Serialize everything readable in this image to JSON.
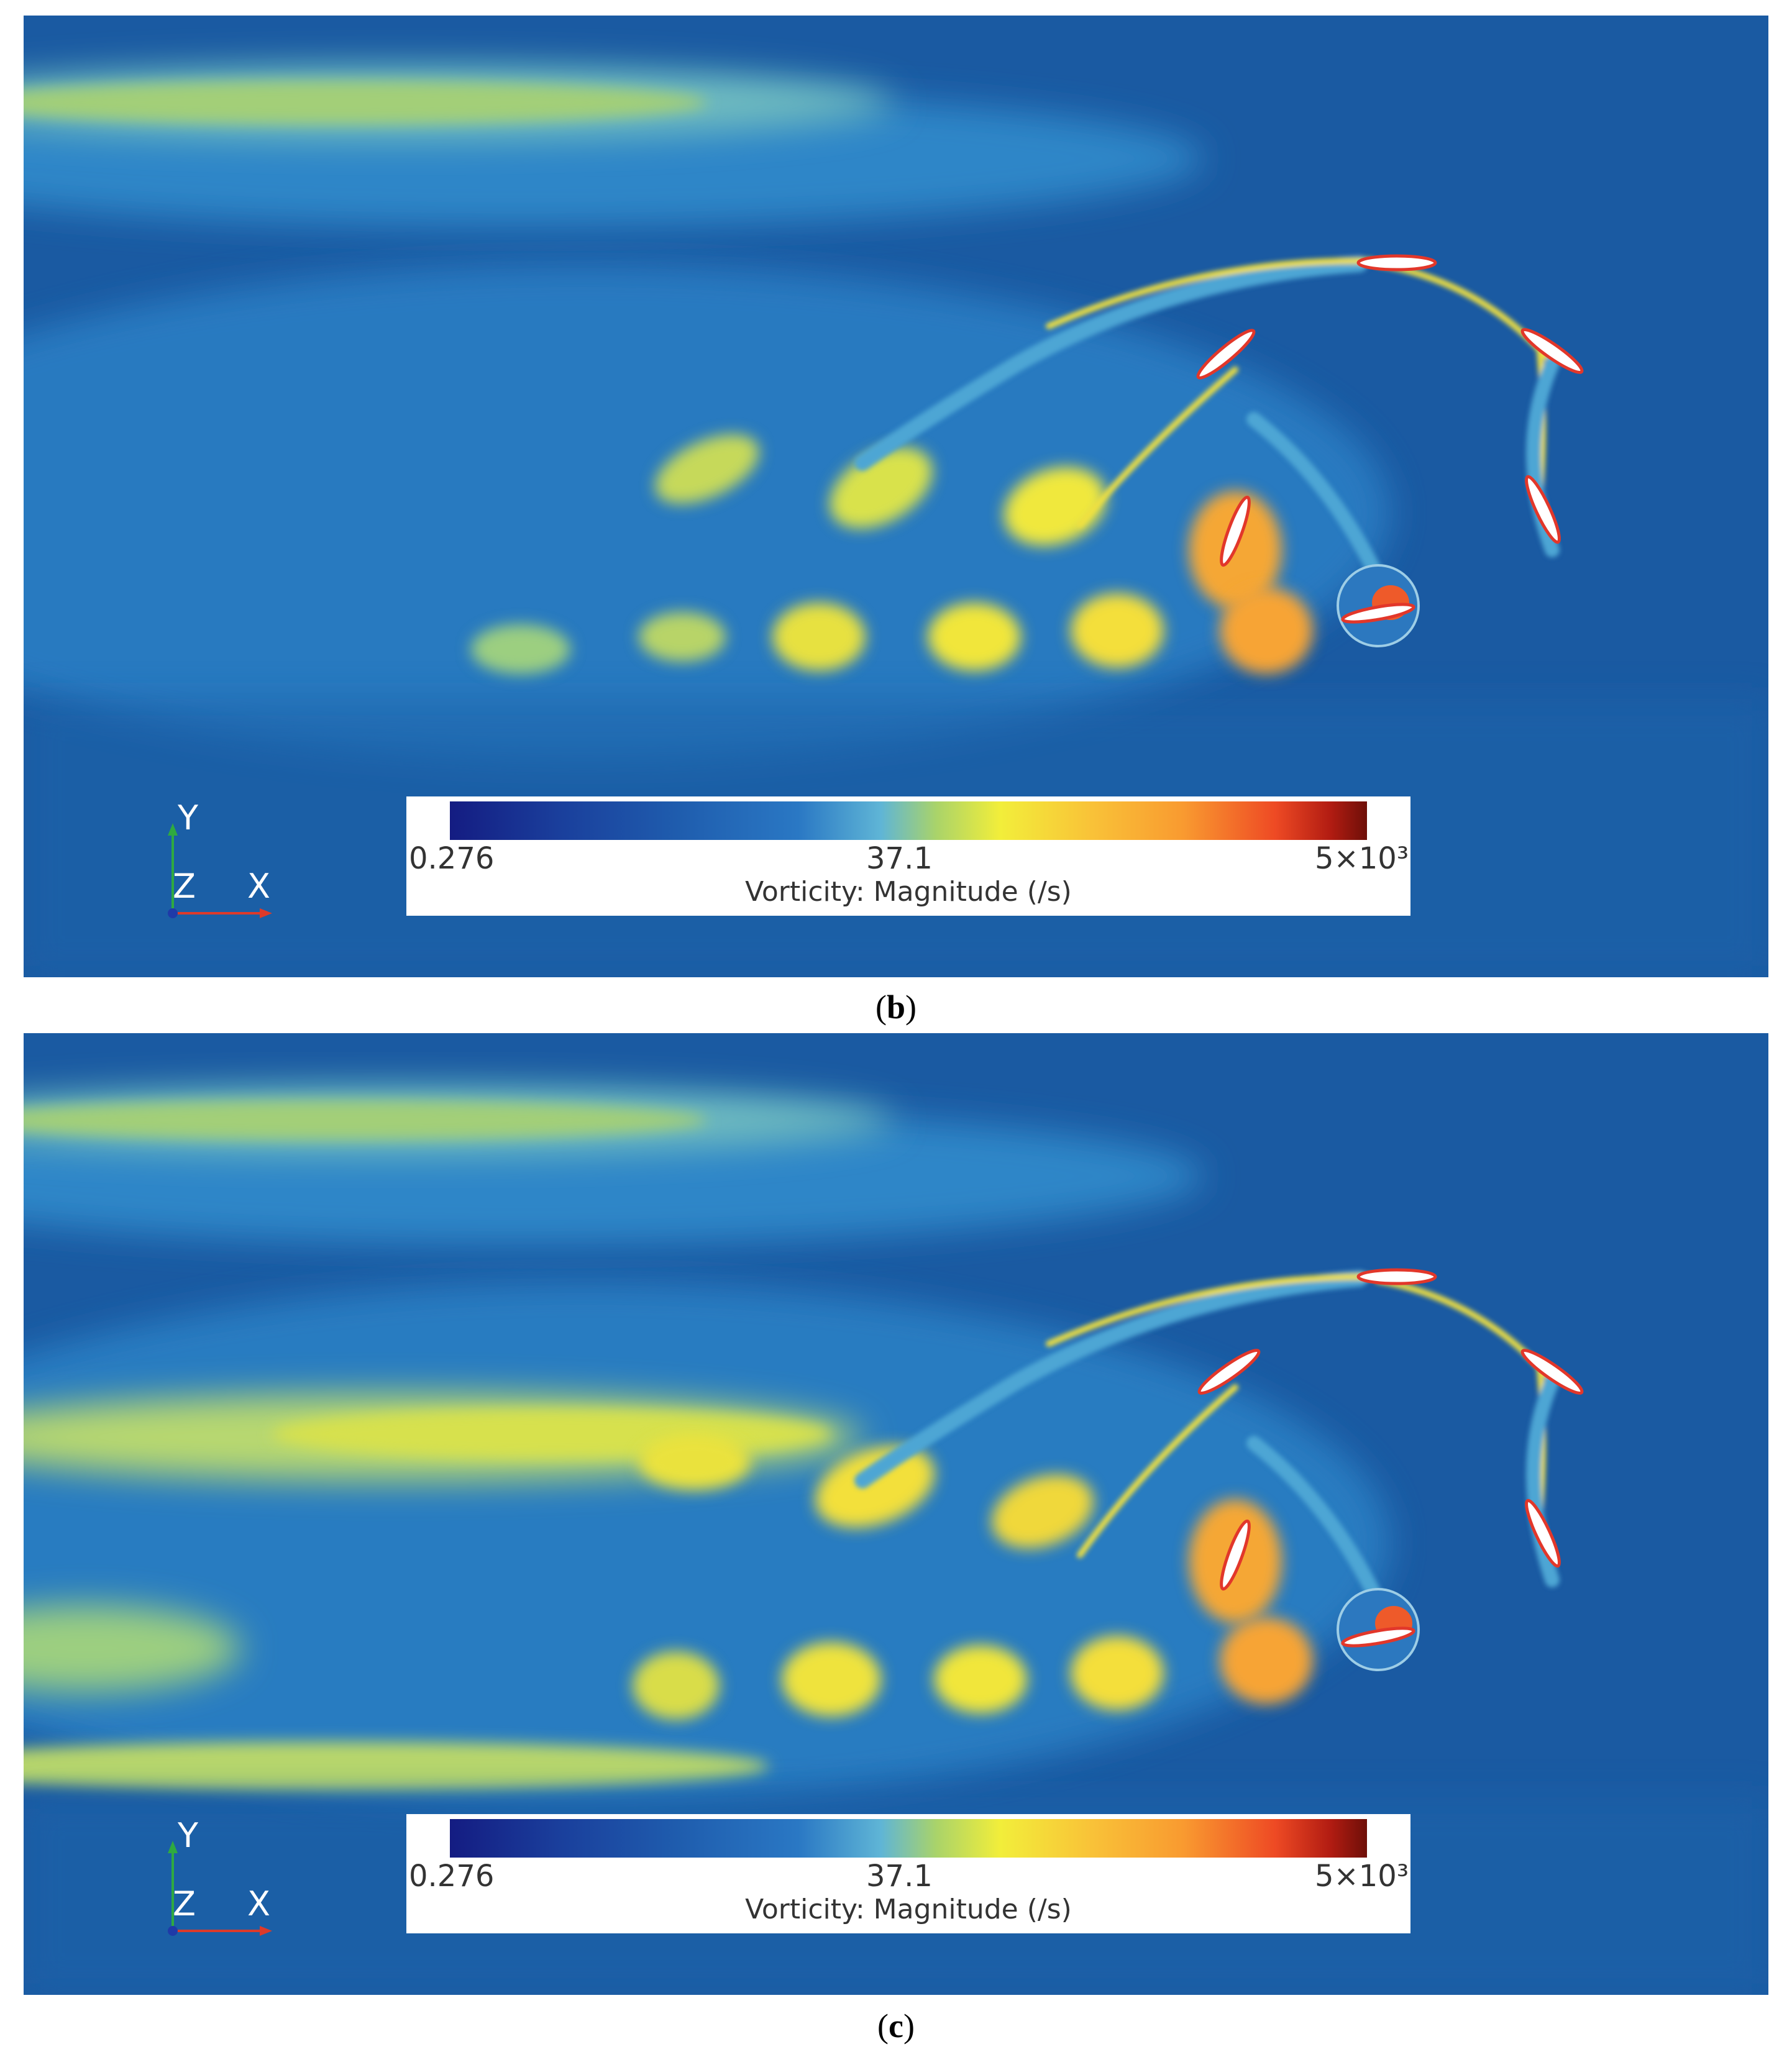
{
  "panels": [
    {
      "caption": "b",
      "legend": {
        "title": "Vorticity: Magnitude (/s)",
        "min": "0.276",
        "mid": "37.1",
        "max": "5×10³"
      },
      "axes": {
        "y": "Y",
        "z": "Z",
        "x": "X"
      }
    },
    {
      "caption": "c",
      "legend": {
        "title": "Vorticity: Magnitude (/s)",
        "min": "0.276",
        "mid": "37.1",
        "max": "5×10³"
      },
      "axes": {
        "y": "Y",
        "z": "Z",
        "x": "X"
      }
    }
  ],
  "colors": {
    "background_field": "#1a5fa6",
    "low": "#141c82",
    "mid": "#f2ee3a",
    "high": "#6e0f08"
  }
}
